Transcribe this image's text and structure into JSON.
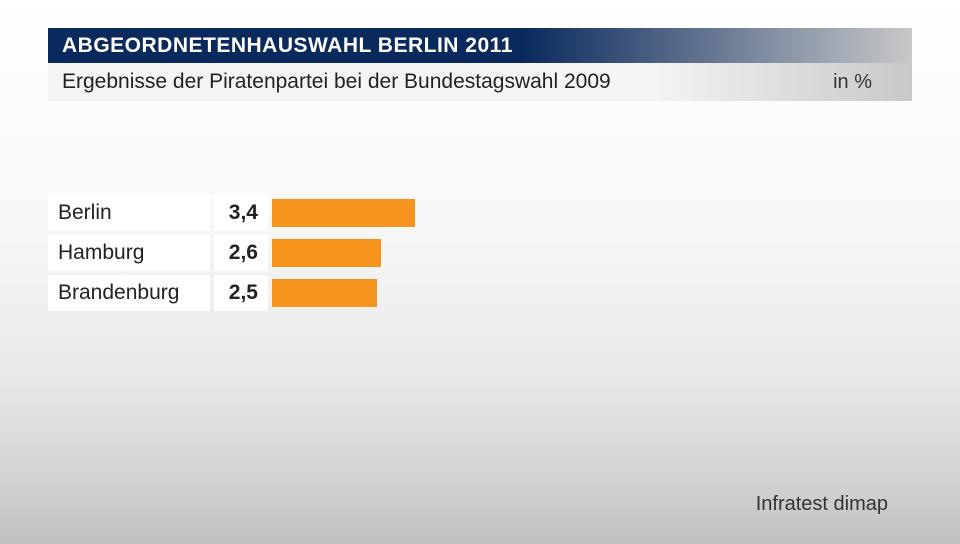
{
  "header": {
    "title": "ABGEORDNETENHAUSWAHL BERLIN 2011",
    "subtitle": "Ergebnisse der Piratenpartei bei der Bundestagswahl 2009",
    "unit": "in %"
  },
  "chart": {
    "type": "bar",
    "orientation": "horizontal",
    "bar_color": "#f7941e",
    "label_bg": "#ffffff",
    "value_bg": "#ffffff",
    "text_color": "#222222",
    "max_value": 3.4,
    "scale_factor": 42,
    "rows": [
      {
        "label": "Berlin",
        "value": "3,4",
        "numeric": 3.4
      },
      {
        "label": "Hamburg",
        "value": "2,6",
        "numeric": 2.6
      },
      {
        "label": "Brandenburg",
        "value": "2,5",
        "numeric": 2.5
      }
    ]
  },
  "source": "Infratest dimap"
}
